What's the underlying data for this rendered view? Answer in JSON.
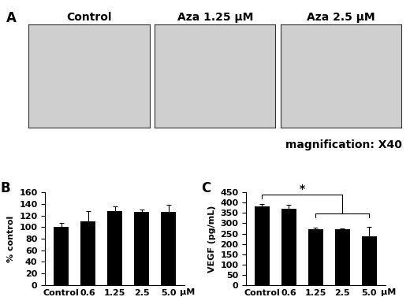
{
  "panel_a": {
    "label": "A",
    "images": [
      "Control",
      "Aza 1.25 μM",
      "Aza 2.5 μM"
    ],
    "note": "magnification: X40"
  },
  "chart_data": [
    {
      "type": "bar",
      "title": "B",
      "categories": [
        "Control",
        "0.6",
        "1.25",
        "2.5",
        "5.0"
      ],
      "x_label": "μM",
      "y_label": "% control",
      "values": [
        100,
        110,
        128,
        127,
        127
      ],
      "errors": [
        7,
        18,
        8,
        3,
        12
      ],
      "color": "#000000",
      "ylim": [
        0,
        160
      ],
      "yticks": [
        0,
        20,
        40,
        60,
        80,
        100,
        120,
        140,
        160
      ]
    },
    {
      "type": "bar",
      "title": "C",
      "categories": [
        "Control",
        "0.6",
        "1.25",
        "2.5",
        "5.0"
      ],
      "x_label": "μM",
      "y_label": "VEGF (pg/mL)",
      "values": [
        383,
        372,
        272,
        272,
        238
      ],
      "errors": [
        10,
        18,
        5,
        3,
        45
      ],
      "color": "#000000",
      "ylim": [
        0,
        450
      ],
      "yticks": [
        0,
        50,
        100,
        150,
        200,
        250,
        300,
        350,
        400,
        450
      ],
      "brackets": [
        {
          "from": "Control",
          "to": "2.5",
          "text": "*"
        },
        {
          "from": "1.25",
          "to": "5.0"
        }
      ]
    }
  ]
}
